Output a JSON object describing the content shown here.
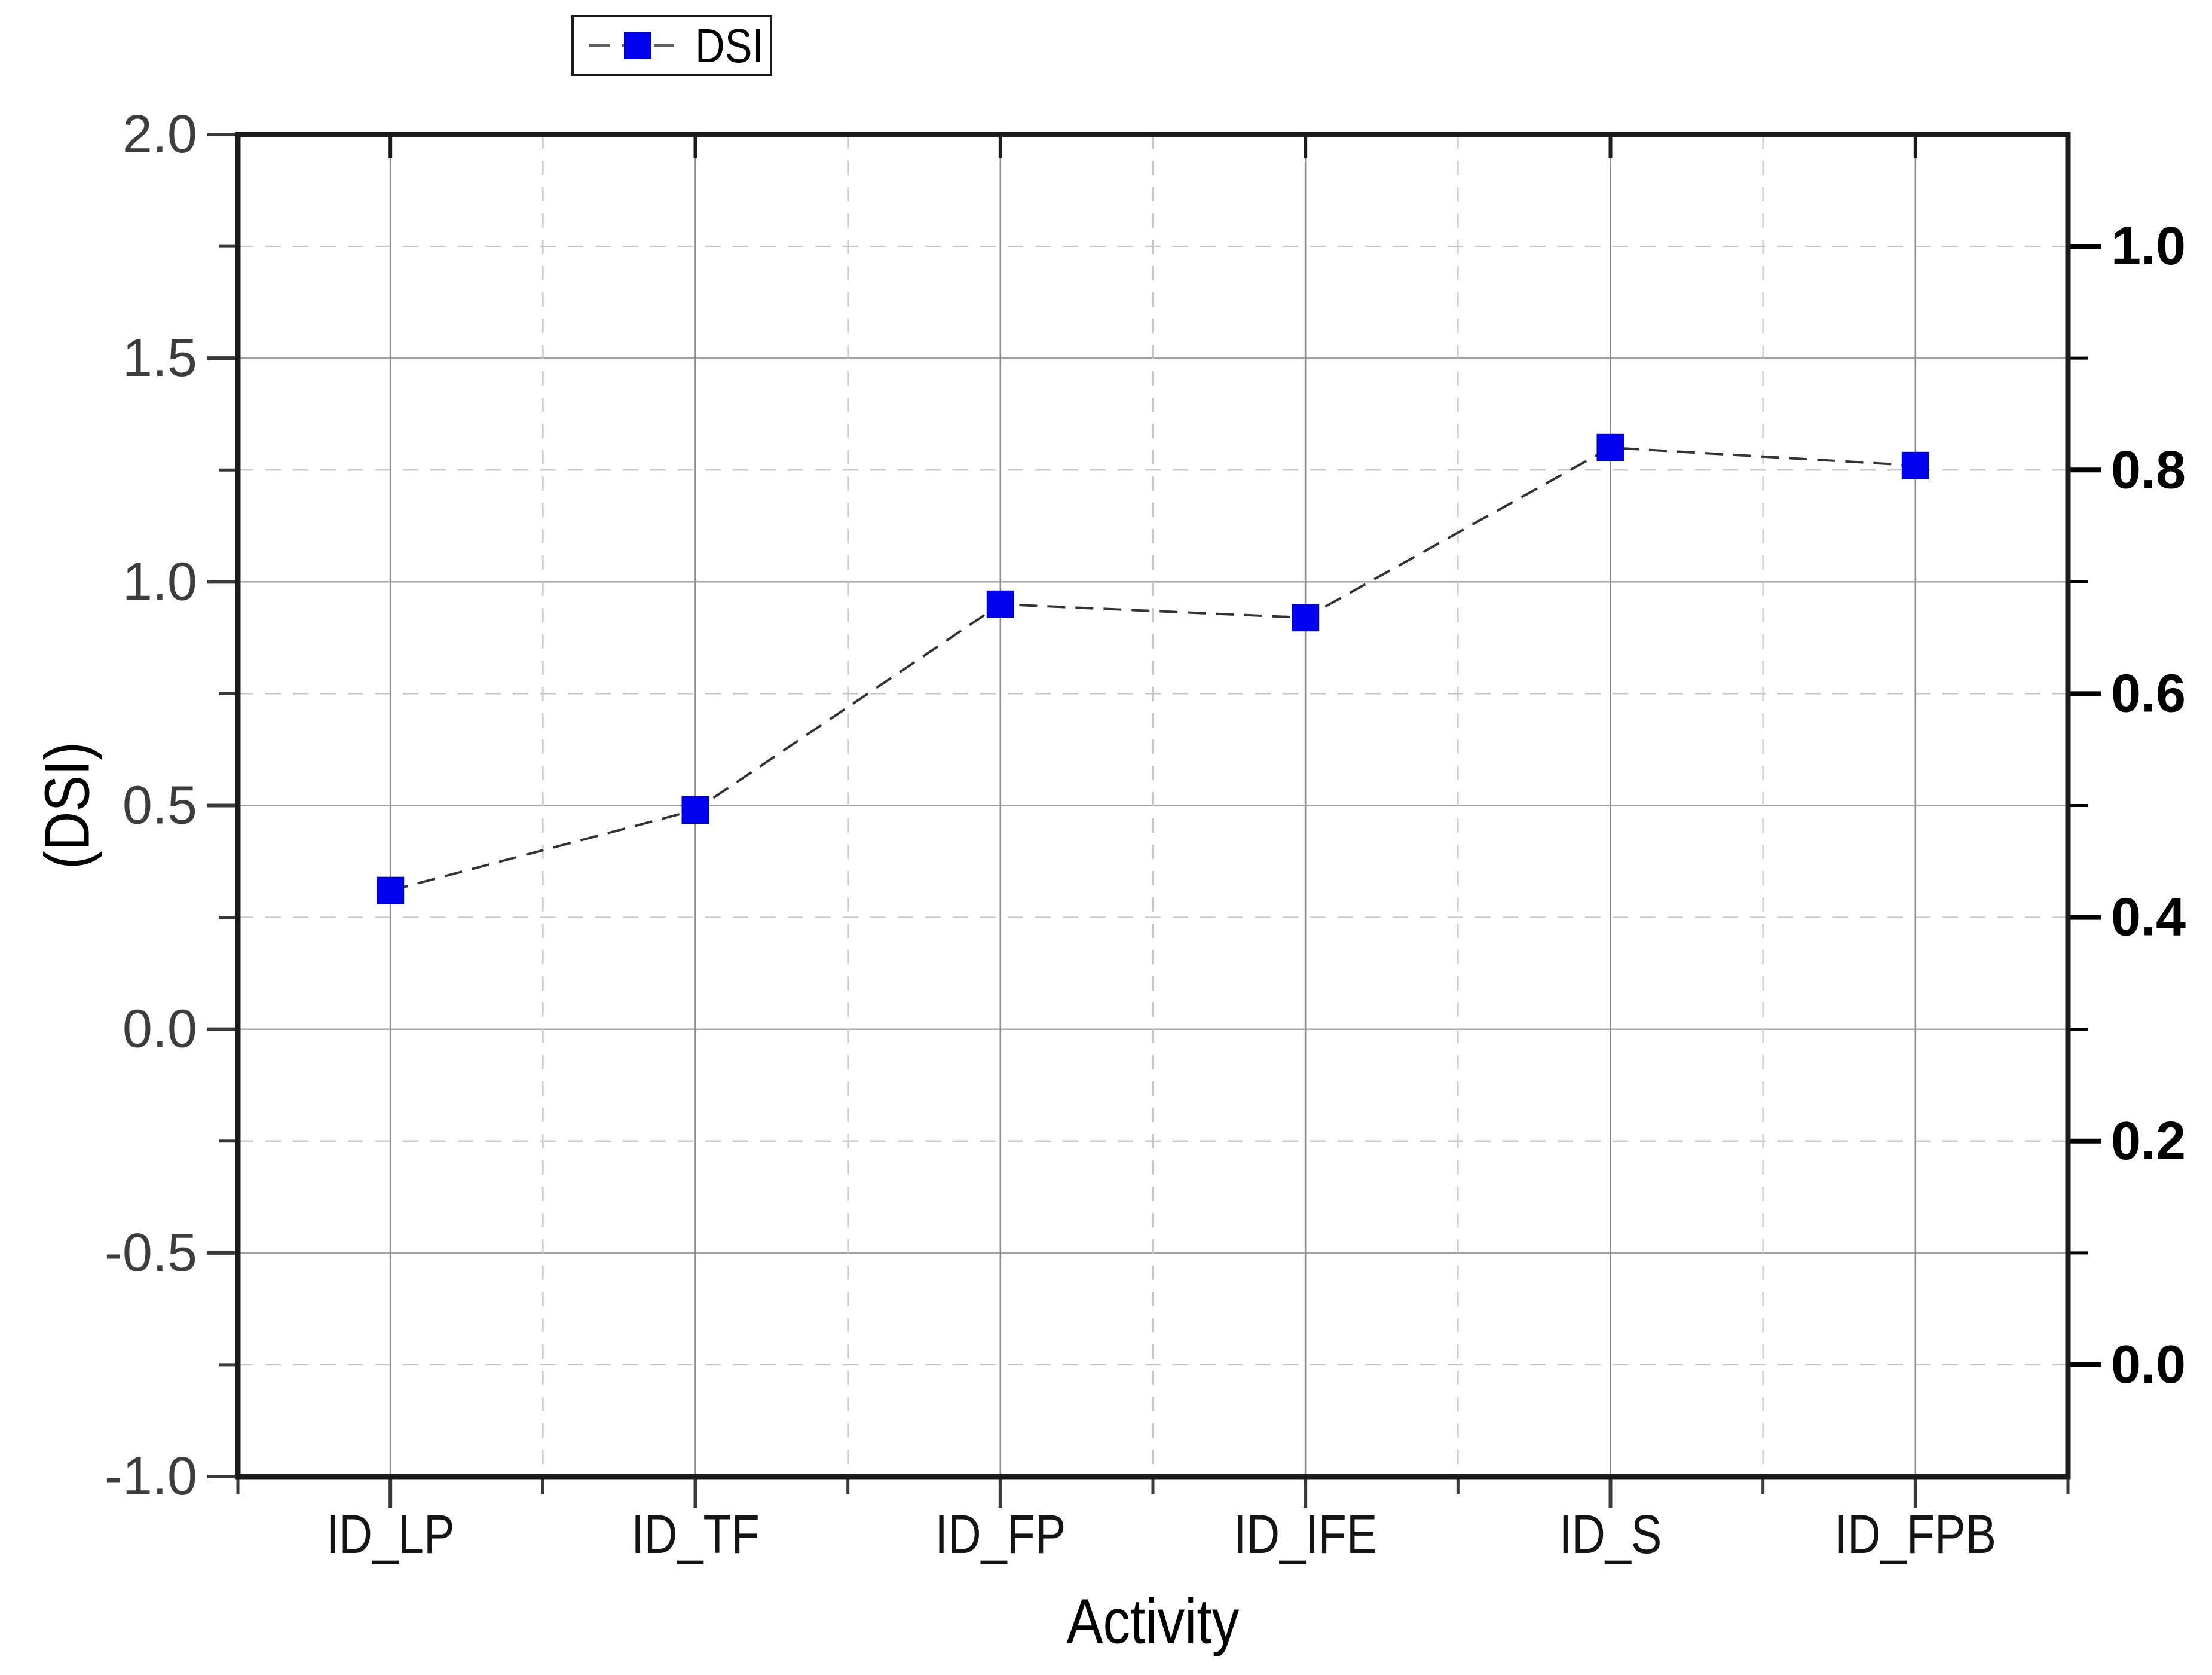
{
  "page": {
    "background": "#ffffff"
  },
  "chart_data": {
    "type": "line",
    "title": "",
    "categories": [
      "ID_LP",
      "ID_TF",
      "ID_FP",
      "ID_IFE",
      "ID_S",
      "ID_FPB"
    ],
    "series": [
      {
        "name": "DSI",
        "marker": "square",
        "marker_color": "#0202ee",
        "line_style": "dashed",
        "line_color": "#333333",
        "values": [
          0.31,
          0.49,
          0.95,
          0.92,
          1.3,
          1.26
        ]
      }
    ],
    "xlabel": "Activity",
    "ylabel_left": "(DSI)",
    "left_axis": {
      "min": -1.0,
      "max": 2.0,
      "major_step": 0.5,
      "minor_step": 0.25,
      "tick_labels": [
        "2.0",
        "1.5",
        "1.0",
        "0.5",
        "0.0",
        "-0.5",
        "-1.0"
      ]
    },
    "right_axis": {
      "min": -0.1,
      "max": 1.1,
      "major_step": 0.2,
      "minor_step": 0.1,
      "tick_labels": [
        "1.0",
        "0.8",
        "0.6",
        "0.4",
        "0.2",
        "0.0"
      ]
    },
    "legend": {
      "entries": [
        "DSI"
      ],
      "position": "top, above plot, left-of-center"
    },
    "grid": {
      "h_major": "solid gray at left-axis 0.5 steps",
      "h_minor": "dashed light gray at left-axis 0.25 steps",
      "v_major": "solid gray at category centers",
      "v_minor": "dashed light gray midway between categories",
      "on": true
    }
  },
  "colors": {
    "accent_marker": "#0202ee",
    "marker_edge": "#0000bb",
    "data_line": "#333333",
    "spine": "#1b1b1b",
    "left_spine": "#4a4a4a",
    "grid_solid": "#a0a0a0",
    "grid_solid_vertical": "#8c8c8c",
    "grid_dashed": "#c6c6c6",
    "tick": "#3a3a3a",
    "tick_right": "#000000",
    "left_tick_label": "#3d3d3d",
    "bottom_tick_label": "#141414",
    "right_tick_label": "#000000",
    "axis_title": "#000000",
    "legend_border": "#1b1b1b",
    "legend_bg": "#ffffff",
    "legend_line": "#606060"
  }
}
